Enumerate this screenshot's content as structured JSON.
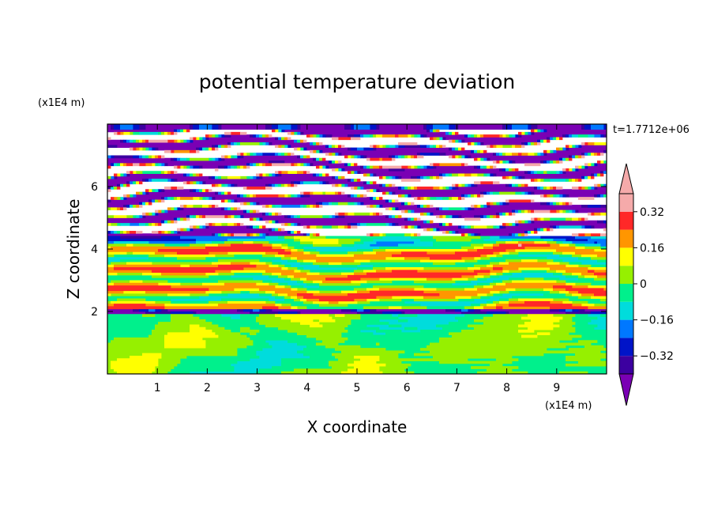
{
  "chart_data": {
    "type": "heatmap",
    "title": "potential temperature deviation",
    "xlabel": "X coordinate",
    "ylabel": "Z coordinate",
    "x_unit": "(x1E4 m)",
    "y_unit": "(x1E4 m)",
    "time_label": "t=1.7712e+06",
    "xlim": [
      0,
      10
    ],
    "ylim": [
      0,
      8
    ],
    "x_ticks": [
      1,
      2,
      3,
      4,
      5,
      6,
      7,
      8,
      9
    ],
    "y_ticks": [
      2,
      4,
      6
    ],
    "colorbar": {
      "levels": [
        -0.4,
        -0.32,
        -0.24,
        -0.16,
        -0.08,
        0,
        0.08,
        0.16,
        0.24,
        0.32,
        0.4
      ],
      "tick_labels": [
        "0.32",
        "0.16",
        "0",
        "−0.16",
        "−0.32"
      ],
      "tick_values": [
        0.32,
        0.16,
        0,
        -0.16,
        -0.32
      ],
      "colors": [
        "#7a00b4",
        "#3c00a0",
        "#0014c8",
        "#0078ff",
        "#00dcdc",
        "#00f08c",
        "#96f000",
        "#ffff00",
        "#ff9600",
        "#ff2828",
        "#f5aaaa"
      ],
      "extend": "both"
    },
    "layers": [
      {
        "z_range": [
          0,
          1.9
        ],
        "value": 0.0,
        "note": "mixed green cells"
      },
      {
        "z_range": [
          1.9,
          2.1
        ],
        "value": -0.36
      },
      {
        "z_range": [
          2.1,
          4.5
        ],
        "value": 0.1,
        "note": "wavy yellow/green/cyan bands"
      },
      {
        "z_range": [
          4.2,
          4.5
        ],
        "value": -0.2
      },
      {
        "z_range": [
          4.5,
          8.0
        ],
        "value": 0.4,
        "note": "alternating pink (+) and purple (-) bands"
      }
    ]
  }
}
